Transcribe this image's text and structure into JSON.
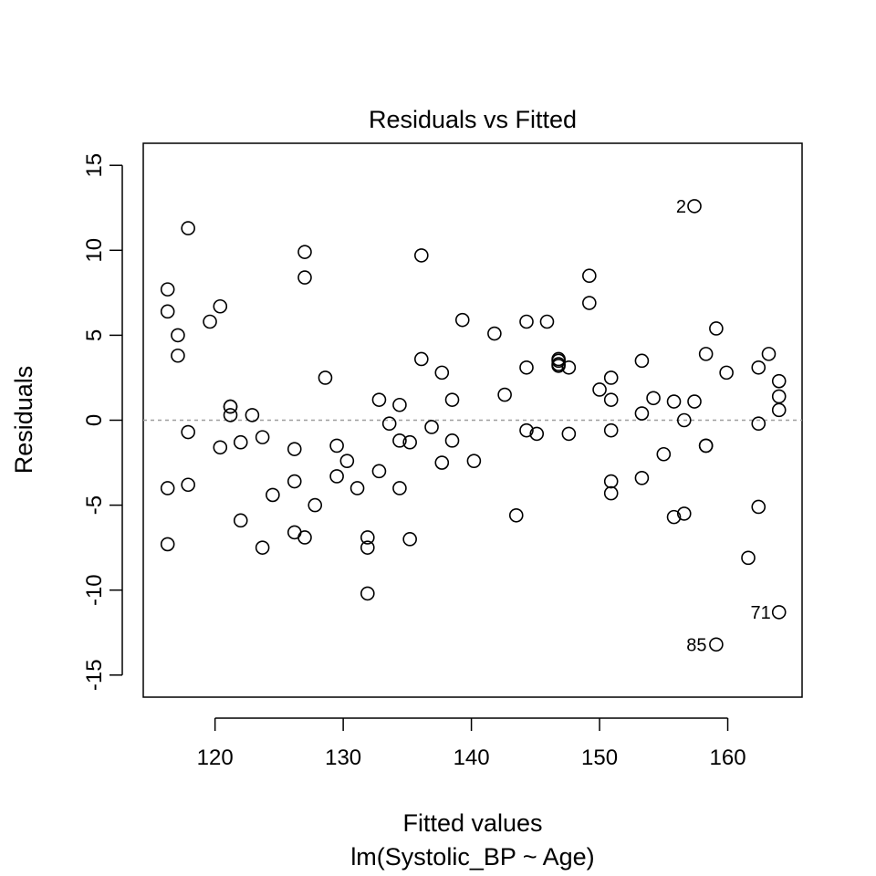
{
  "chart_data": {
    "type": "scatter",
    "title": "Residuals vs Fitted",
    "xlabel": "Fitted values",
    "subtitle": "lm(Systolic_BP ~ Age)",
    "ylabel": "Residuals",
    "xlim": [
      114.4,
      165.8
    ],
    "ylim": [
      -16.3,
      16.3
    ],
    "xticks": [
      120,
      130,
      140,
      150,
      160
    ],
    "yticks": [
      -15,
      -10,
      -5,
      0,
      5,
      10,
      15
    ],
    "reference_line": {
      "y": 0,
      "style": "dashed",
      "color": "#9e9e9e"
    },
    "labeled_points": [
      {
        "label": "2",
        "x": 157.4,
        "y": 12.6
      },
      {
        "label": "71",
        "x": 164.0,
        "y": -11.3
      },
      {
        "label": "85",
        "x": 159.0,
        "y": -13.2
      }
    ],
    "points": [
      [
        116.3,
        7.7
      ],
      [
        116.3,
        6.4
      ],
      [
        116.3,
        -4.0
      ],
      [
        116.3,
        -7.3
      ],
      [
        117.1,
        5.0
      ],
      [
        117.1,
        3.8
      ],
      [
        117.9,
        11.3
      ],
      [
        117.9,
        -0.7
      ],
      [
        117.9,
        -3.8
      ],
      [
        119.6,
        5.8
      ],
      [
        120.4,
        6.7
      ],
      [
        120.4,
        -1.6
      ],
      [
        121.2,
        0.8
      ],
      [
        121.2,
        0.8
      ],
      [
        121.2,
        0.3
      ],
      [
        122.0,
        -1.3
      ],
      [
        122.0,
        -5.9
      ],
      [
        122.9,
        0.3
      ],
      [
        123.7,
        -1.0
      ],
      [
        123.7,
        -7.5
      ],
      [
        124.5,
        -4.4
      ],
      [
        126.2,
        -1.7
      ],
      [
        126.2,
        -3.6
      ],
      [
        126.2,
        -6.6
      ],
      [
        127.0,
        9.9
      ],
      [
        127.0,
        8.4
      ],
      [
        127.0,
        -6.9
      ],
      [
        127.8,
        -5.0
      ],
      [
        128.6,
        2.5
      ],
      [
        129.5,
        -1.5
      ],
      [
        129.5,
        -3.3
      ],
      [
        130.3,
        -2.4
      ],
      [
        131.1,
        -4.0
      ],
      [
        131.9,
        -6.9
      ],
      [
        131.9,
        -7.5
      ],
      [
        131.9,
        -10.2
      ],
      [
        132.8,
        1.2
      ],
      [
        132.8,
        -3.0
      ],
      [
        133.6,
        -0.2
      ],
      [
        134.4,
        0.9
      ],
      [
        134.4,
        -1.2
      ],
      [
        134.4,
        -4.0
      ],
      [
        135.2,
        -1.3
      ],
      [
        135.2,
        -7.0
      ],
      [
        136.1,
        9.7
      ],
      [
        136.1,
        3.6
      ],
      [
        136.9,
        -0.4
      ],
      [
        137.7,
        2.8
      ],
      [
        137.7,
        -2.5
      ],
      [
        138.5,
        1.2
      ],
      [
        138.5,
        -1.2
      ],
      [
        139.3,
        5.9
      ],
      [
        140.2,
        -2.4
      ],
      [
        141.8,
        5.1
      ],
      [
        142.6,
        1.5
      ],
      [
        143.5,
        -5.6
      ],
      [
        144.3,
        5.8
      ],
      [
        144.3,
        3.1
      ],
      [
        144.3,
        -0.6
      ],
      [
        145.1,
        -0.8
      ],
      [
        145.9,
        5.8
      ],
      [
        146.8,
        3.6
      ],
      [
        146.8,
        3.5
      ],
      [
        146.8,
        3.3
      ],
      [
        146.8,
        3.2
      ],
      [
        147.6,
        3.1
      ],
      [
        147.6,
        -0.8
      ],
      [
        149.2,
        8.5
      ],
      [
        149.2,
        6.9
      ],
      [
        150.0,
        1.8
      ],
      [
        150.9,
        2.5
      ],
      [
        150.9,
        1.2
      ],
      [
        150.9,
        -0.6
      ],
      [
        150.9,
        -3.6
      ],
      [
        150.9,
        -4.3
      ],
      [
        153.3,
        3.5
      ],
      [
        153.3,
        0.4
      ],
      [
        153.3,
        -3.4
      ],
      [
        154.2,
        1.3
      ],
      [
        155.0,
        -2.0
      ],
      [
        155.8,
        1.1
      ],
      [
        155.8,
        -5.7
      ],
      [
        156.6,
        0.0
      ],
      [
        156.6,
        -5.5
      ],
      [
        157.4,
        12.6
      ],
      [
        157.4,
        1.1
      ],
      [
        158.3,
        3.9
      ],
      [
        158.3,
        -1.5
      ],
      [
        158.3,
        -1.5
      ],
      [
        159.1,
        5.4
      ],
      [
        159.1,
        -13.2
      ],
      [
        159.9,
        2.8
      ],
      [
        161.6,
        -8.1
      ],
      [
        162.4,
        3.1
      ],
      [
        162.4,
        -0.2
      ],
      [
        162.4,
        -5.1
      ],
      [
        163.2,
        3.9
      ],
      [
        164.0,
        2.3
      ],
      [
        164.0,
        1.4
      ],
      [
        164.0,
        0.6
      ],
      [
        164.0,
        -11.3
      ]
    ]
  }
}
